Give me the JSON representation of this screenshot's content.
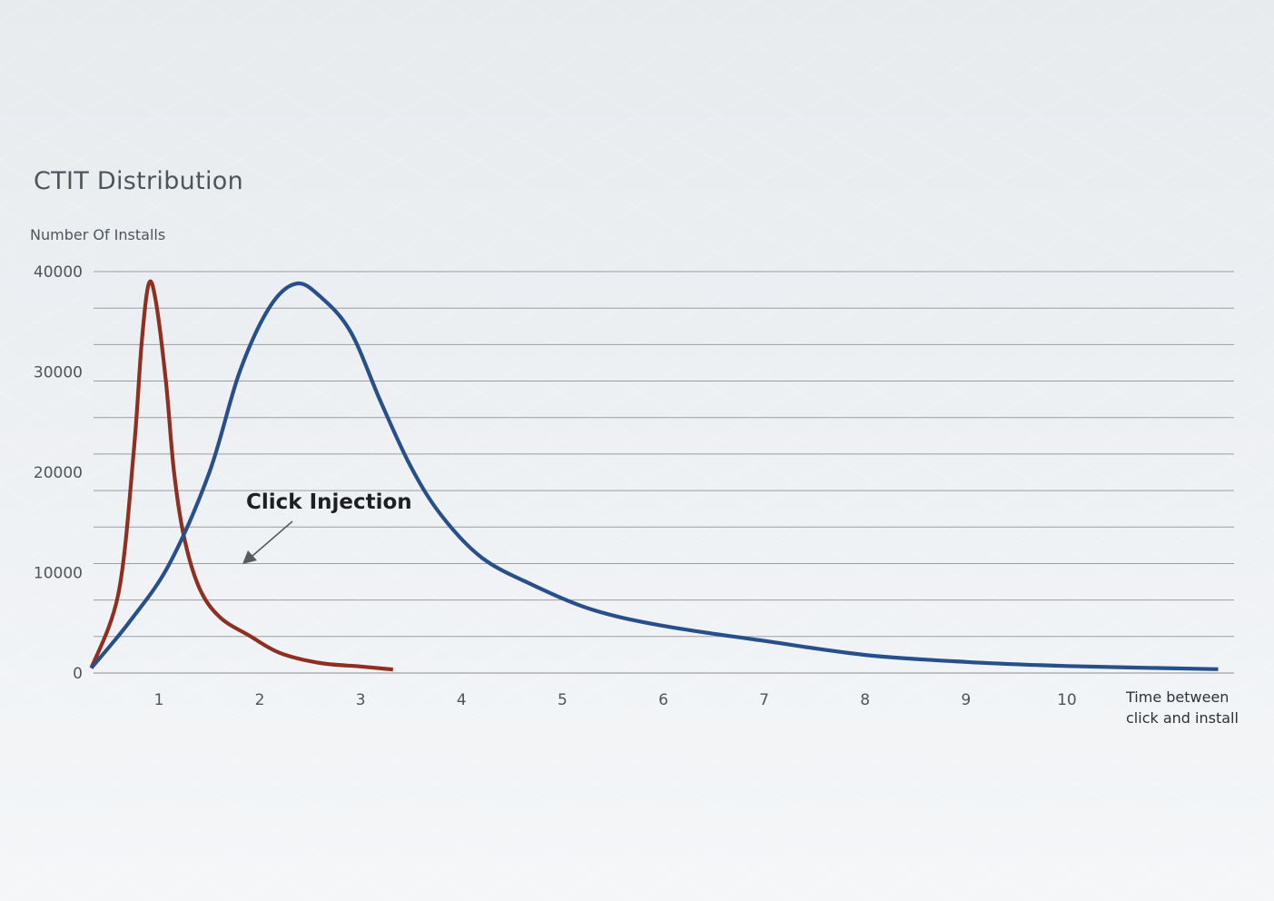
{
  "chart_data": {
    "type": "line",
    "title": "CTIT Distribution",
    "ylabel": "Number Of Installs",
    "xlabel_lines": [
      "Time between",
      "click and install"
    ],
    "ylim": [
      0,
      40000
    ],
    "xlim": [
      0.4,
      11.6
    ],
    "y_ticks": [
      0,
      10000,
      20000,
      30000,
      40000
    ],
    "x_ticks": [
      1,
      2,
      3,
      4,
      5,
      6,
      7,
      8,
      9,
      10
    ],
    "gridline_count": 12,
    "grid": true,
    "annotation": "Click Injection",
    "series": [
      {
        "color": "#8e2f22",
        "points": [
          [
            0.33,
            500
          ],
          [
            0.6,
            8000
          ],
          [
            0.75,
            22000
          ],
          [
            0.83,
            33000
          ],
          [
            0.9,
            38800
          ],
          [
            0.97,
            37000
          ],
          [
            1.07,
            29000
          ],
          [
            1.15,
            20000
          ],
          [
            1.25,
            13500
          ],
          [
            1.4,
            8500
          ],
          [
            1.6,
            5600
          ],
          [
            1.9,
            3700
          ],
          [
            2.2,
            2000
          ],
          [
            2.6,
            1000
          ],
          [
            3.0,
            650
          ],
          [
            3.32,
            350
          ]
        ]
      },
      {
        "color": "#27508a",
        "points": [
          [
            0.33,
            500
          ],
          [
            0.7,
            5000
          ],
          [
            1.1,
            10800
          ],
          [
            1.5,
            20000
          ],
          [
            1.8,
            30000
          ],
          [
            2.1,
            36500
          ],
          [
            2.36,
            38800
          ],
          [
            2.6,
            37500
          ],
          [
            2.9,
            34000
          ],
          [
            3.2,
            27000
          ],
          [
            3.5,
            20500
          ],
          [
            3.8,
            15700
          ],
          [
            4.2,
            11500
          ],
          [
            4.7,
            8800
          ],
          [
            5.3,
            6300
          ],
          [
            6.0,
            4700
          ],
          [
            7.0,
            3200
          ],
          [
            8.0,
            1800
          ],
          [
            9.0,
            1100
          ],
          [
            10.0,
            700
          ],
          [
            11.5,
            380
          ]
        ]
      }
    ]
  }
}
